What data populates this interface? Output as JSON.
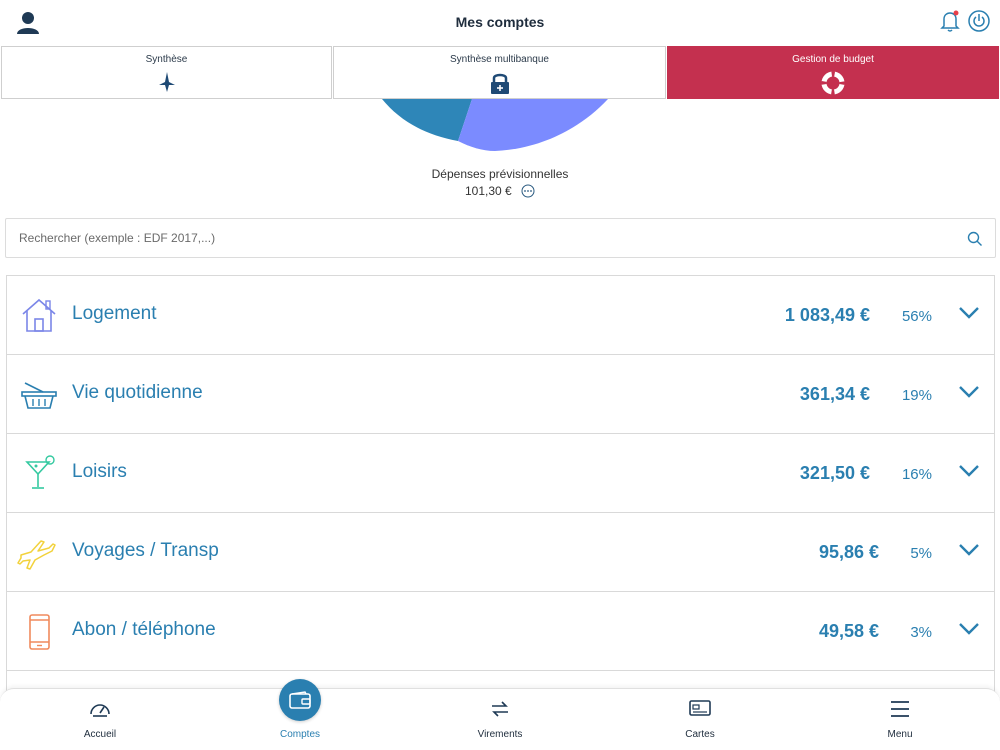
{
  "header": {
    "title": "Mes comptes",
    "user_icon": "user-icon",
    "bell_icon": "bell-icon",
    "power_icon": "power-icon",
    "accent_color": "#c4304f"
  },
  "tabs": [
    {
      "label": "Synthèse",
      "icon": "star-icon",
      "active": false
    },
    {
      "label": "Synthèse multibanque",
      "icon": "lock-plus-icon",
      "active": false
    },
    {
      "label": "Gestion de budget",
      "icon": "lifebuoy-icon",
      "active": true
    }
  ],
  "pie": {
    "caption": "Dépenses prévisionnelles",
    "value": "101,30 €",
    "colors": [
      "#2e86b8",
      "#7b8bff"
    ]
  },
  "search": {
    "placeholder": "Rechercher (exemple : EDF 2017,...)",
    "value": ""
  },
  "categories": [
    {
      "name": "Logement",
      "amount": "1 083,49 €",
      "percent": "56%",
      "icon": "house-icon",
      "color": "#7b86e8"
    },
    {
      "name": "Vie quotidienne",
      "amount": "361,34 €",
      "percent": "19%",
      "icon": "basket-icon",
      "color": "#2a7fb0"
    },
    {
      "name": "Loisirs",
      "amount": "321,50 €",
      "percent": "16%",
      "icon": "cocktail-icon",
      "color": "#34c9a0"
    },
    {
      "name": "Voyages / Transp",
      "amount": "95,86 €",
      "percent": "5%",
      "icon": "plane-icon",
      "color": "#f2d23c"
    },
    {
      "name": "Abon / téléphone",
      "amount": "49,58 €",
      "percent": "3%",
      "icon": "phone-icon",
      "color": "#f08a5d"
    }
  ],
  "bottom_nav": [
    {
      "label": "Accueil",
      "icon": "speedometer-icon",
      "active": false
    },
    {
      "label": "Comptes",
      "icon": "wallet-icon",
      "active": true
    },
    {
      "label": "Virements",
      "icon": "transfer-icon",
      "active": false
    },
    {
      "label": "Cartes",
      "icon": "card-icon",
      "active": false
    },
    {
      "label": "Menu",
      "icon": "hamburger-icon",
      "active": false
    }
  ]
}
